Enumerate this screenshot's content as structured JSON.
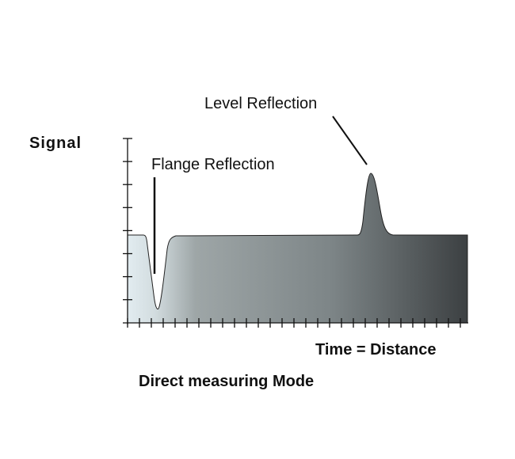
{
  "diagram": {
    "y_axis_label": "Signal",
    "x_axis_label": "Time = Distance",
    "caption": "Direct measuring Mode",
    "annotations": {
      "flange": "Flange Reflection",
      "level": "Level Reflection"
    },
    "colors": {
      "fill_start": "#e2ecf0",
      "fill_mid": "#8a9394",
      "fill_end": "#3c4042",
      "line": "#111111"
    }
  }
}
